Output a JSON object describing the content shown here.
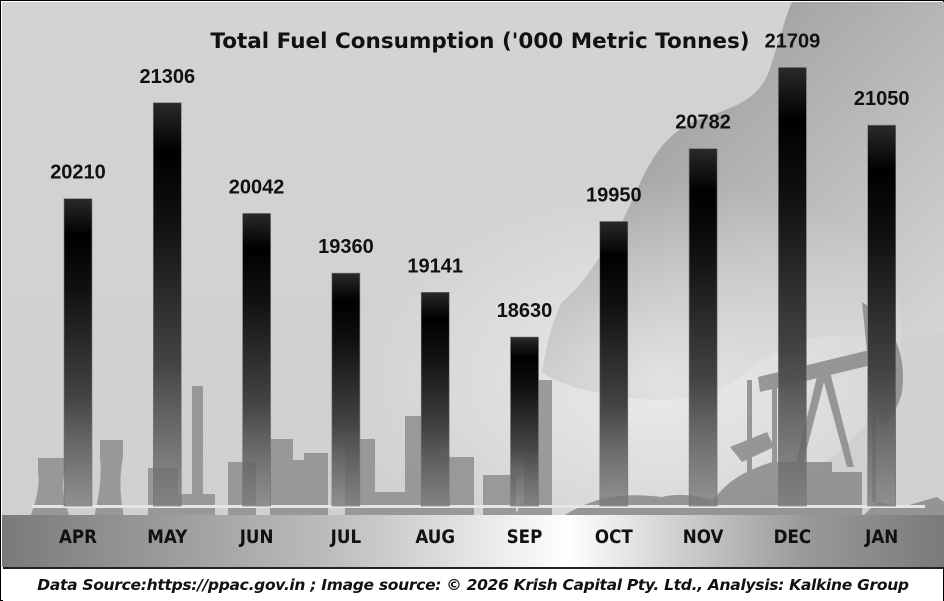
{
  "chart_data": {
    "type": "bar",
    "title": "Total Fuel Consumption ('000 Metric Tonnes)",
    "xlabel": "",
    "ylabel": "",
    "categories": [
      "APR",
      "MAY",
      "JUN",
      "JUL",
      "AUG",
      "SEP",
      "OCT",
      "NOV",
      "DEC",
      "JAN"
    ],
    "values": [
      20210,
      21306,
      20042,
      19360,
      19141,
      18630,
      19950,
      20782,
      21709,
      21050
    ],
    "data_labels": [
      "20210",
      "21306",
      "20042",
      "19360",
      "19141",
      "18630",
      "19950",
      "20782",
      "21709",
      "21050"
    ],
    "ylim": [
      16700,
      22000
    ],
    "grid": false,
    "legend": "none",
    "bar_colors": {
      "top": "#2a2a2a",
      "mid": "#000000",
      "bottom": "#666666"
    }
  },
  "footer": {
    "source_text": "Data Source:https://ppac.gov.in ; Image source: © 2026 Krish Capital Pty. Ltd., Analysis: Kalkine Group"
  },
  "colors": {
    "background": "#d3d3d3",
    "smoke": "#a8a8a8",
    "silhouette": "#8f8f8f",
    "ground": "#8a8a8a"
  }
}
